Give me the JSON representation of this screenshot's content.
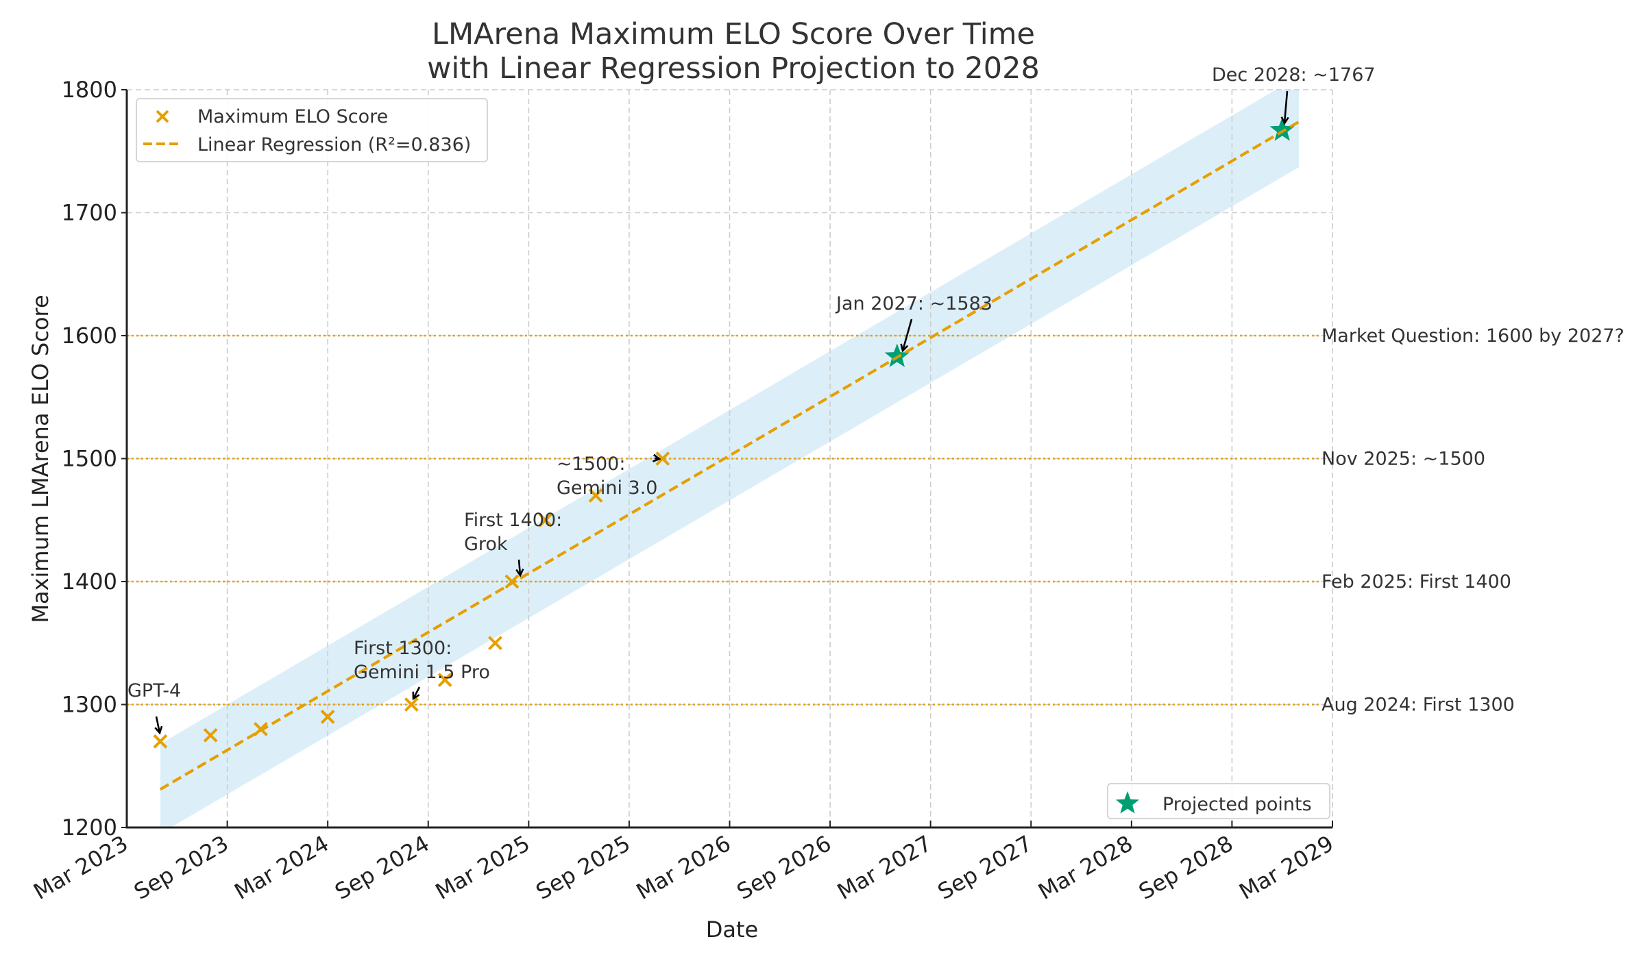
{
  "chart_data": {
    "type": "scatter",
    "title": [
      "LMArena Maximum ELO Score Over Time",
      "with Linear Regression Projection to 2028"
    ],
    "xlabel": "Date",
    "ylabel": "Maximum LMArena ELO Score",
    "xlim": [
      "2023-03",
      "2029-03"
    ],
    "ylim": [
      1200,
      1800
    ],
    "grid": true,
    "x_ticks": [
      "Mar 2023",
      "Sep 2023",
      "Mar 2024",
      "Sep 2024",
      "Mar 2025",
      "Sep 2025",
      "Mar 2026",
      "Sep 2026",
      "Mar 2027",
      "Sep 2027",
      "Mar 2028",
      "Sep 2028",
      "Mar 2029"
    ],
    "y_ticks": [
      1200,
      1300,
      1400,
      1500,
      1600,
      1700,
      1800
    ],
    "series": [
      {
        "name": "Maximum ELO Score",
        "type": "scatter",
        "marker": "x",
        "color": "#E69F00",
        "points": [
          {
            "x": "2023-05",
            "y": 1270
          },
          {
            "x": "2023-08",
            "y": 1275
          },
          {
            "x": "2023-11",
            "y": 1280
          },
          {
            "x": "2024-03",
            "y": 1290
          },
          {
            "x": "2024-08",
            "y": 1300
          },
          {
            "x": "2024-10",
            "y": 1320
          },
          {
            "x": "2025-01",
            "y": 1350
          },
          {
            "x": "2025-02",
            "y": 1400
          },
          {
            "x": "2025-04",
            "y": 1450
          },
          {
            "x": "2025-07",
            "y": 1470
          },
          {
            "x": "2025-11",
            "y": 1500
          }
        ]
      },
      {
        "name": "Linear Regression (R²=0.836)",
        "type": "line",
        "style": "dashed",
        "color": "#E69F00",
        "points": [
          {
            "x": "2023-05",
            "y": 1231
          },
          {
            "x": "2029-01",
            "y": 1774
          }
        ],
        "band": {
          "color": "#DCEFF9",
          "start": {
            "x": "2023-05",
            "low": 1195,
            "high": 1268
          },
          "end": {
            "x": "2029-01",
            "low": 1737,
            "high": 1811
          }
        }
      },
      {
        "name": "Projected points",
        "type": "scatter",
        "marker": "star",
        "color": "#009E73",
        "points": [
          {
            "x": "2027-01",
            "y": 1583
          },
          {
            "x": "2028-12",
            "y": 1767
          }
        ]
      }
    ],
    "reference_lines": [
      {
        "y": 1300,
        "label": "Aug 2024: First 1300"
      },
      {
        "y": 1400,
        "label": "Feb 2025: First 1400"
      },
      {
        "y": 1500,
        "label": "Nov 2025: ~1500"
      },
      {
        "y": 1600,
        "label": "Market Question: 1600 by 2027?"
      }
    ],
    "reference_line_color": "#E69F00",
    "annotations": [
      {
        "text": [
          "GPT-4"
        ],
        "target": {
          "x": "2023-05",
          "y": 1270
        }
      },
      {
        "text": [
          "First 1300:",
          "Gemini 1.5 Pro"
        ],
        "target": {
          "x": "2024-08",
          "y": 1300
        }
      },
      {
        "text": [
          "First 1400:",
          "Grok"
        ],
        "target": {
          "x": "2025-02",
          "y": 1400
        }
      },
      {
        "text": [
          "~1500:",
          "Gemini 3.0"
        ],
        "target": {
          "x": "2025-11",
          "y": 1500
        }
      },
      {
        "text": [
          "Jan 2027: ~1583"
        ],
        "target": {
          "x": "2027-01",
          "y": 1583
        }
      },
      {
        "text": [
          "Dec 2028: ~1767"
        ],
        "target": {
          "x": "2028-12",
          "y": 1767
        }
      }
    ],
    "legends": [
      {
        "placement": "top-left",
        "entries": [
          "Maximum ELO Score",
          "Linear Regression (R²=0.836)"
        ]
      },
      {
        "placement": "bottom-right",
        "entries": [
          "Projected points"
        ]
      }
    ]
  }
}
